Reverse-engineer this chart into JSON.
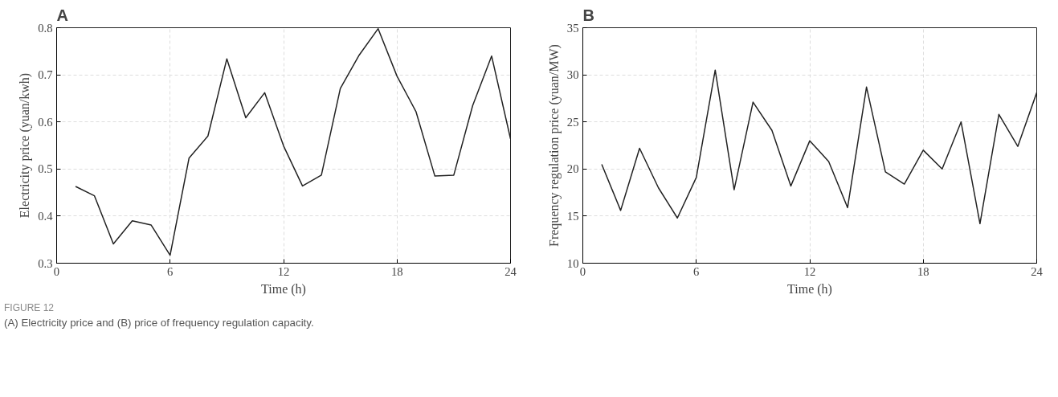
{
  "chart_data": [
    {
      "type": "line",
      "title": "A",
      "xlabel": "Time (h)",
      "ylabel": "Electricity price (yuan/kwh)",
      "x": [
        1,
        2,
        3,
        4,
        5,
        6,
        7,
        8,
        9,
        10,
        11,
        12,
        13,
        14,
        15,
        16,
        17,
        18,
        19,
        20,
        21,
        22,
        23,
        24
      ],
      "series": [
        {
          "color": "#222222",
          "values": [
            0.463,
            0.443,
            0.341,
            0.39,
            0.381,
            0.317,
            0.523,
            0.57,
            0.734,
            0.609,
            0.662,
            0.549,
            0.464,
            0.487,
            0.671,
            0.742,
            0.798,
            0.697,
            0.622,
            0.485,
            0.487,
            0.635,
            0.74,
            0.564
          ]
        }
      ],
      "xlim": [
        0,
        24
      ],
      "xticks": [
        0,
        6,
        12,
        18,
        24
      ],
      "ylim": [
        0.3,
        0.8
      ],
      "yticks": [
        0.3,
        0.4,
        0.5,
        0.6,
        0.7,
        0.8
      ],
      "grid": true,
      "line_style": "solid",
      "annotations": [
        "FIGURE 12",
        "(A) Electricity price and (B) price of frequency regulation capacity."
      ]
    },
    {
      "type": "line",
      "title": "B",
      "xlabel": "Time (h)",
      "ylabel": "Frequency regulation price (yuan/MW)",
      "x": [
        1,
        2,
        3,
        4,
        5,
        6,
        7,
        8,
        9,
        10,
        11,
        12,
        13,
        14,
        15,
        16,
        17,
        18,
        19,
        20,
        21,
        22,
        23,
        24
      ],
      "series": [
        {
          "color": "#222222",
          "values": [
            20.5,
            15.6,
            22.2,
            18.0,
            14.8,
            19.1,
            30.5,
            17.8,
            27.1,
            24.1,
            18.2,
            23.0,
            20.8,
            15.9,
            28.7,
            19.7,
            18.4,
            22.0,
            20.0,
            25.0,
            14.2,
            25.8,
            22.4,
            28.1
          ]
        }
      ],
      "xlim": [
        0,
        24
      ],
      "xticks": [
        0,
        6,
        12,
        18,
        24
      ],
      "ylim": [
        10,
        35
      ],
      "yticks": [
        10,
        15,
        20,
        25,
        30,
        35
      ],
      "grid": true,
      "line_style": "solid"
    }
  ]
}
